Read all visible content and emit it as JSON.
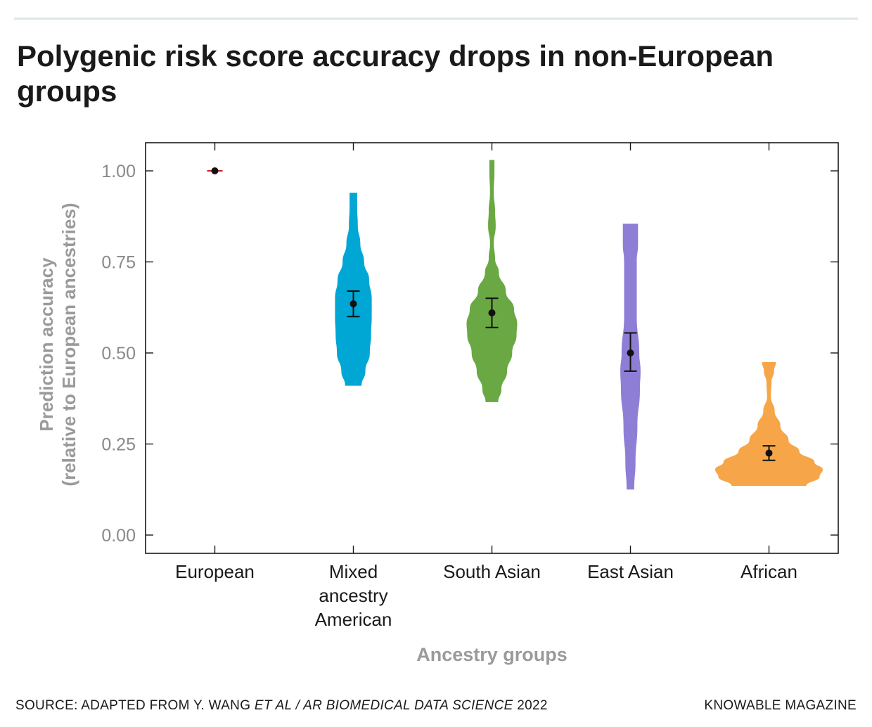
{
  "header": {
    "title": "Polygenic risk score accuracy drops in non-European groups"
  },
  "footer": {
    "source_prefix": "SOURCE: ADAPTED FROM Y. WANG ",
    "source_italic": "ET AL / AR BIOMEDICAL DATA SCIENCE",
    "source_year": " 2022",
    "brand": "KNOWABLE MAGAZINE"
  },
  "chart_data": {
    "type": "violin",
    "title": "Polygenic risk score accuracy drops in non-European groups",
    "xlabel": "Ancestry groups",
    "ylabel": [
      "Prediction accuracy",
      "(relative to European ancestries)"
    ],
    "ylim": [
      0,
      1.075
    ],
    "yticks": [
      0.0,
      0.25,
      0.5,
      0.75,
      1.0
    ],
    "ytick_labels": [
      "0.00",
      "0.25",
      "0.50",
      "0.75",
      "1.00"
    ],
    "grid": false,
    "categories": [
      {
        "name": "European",
        "label_lines": [
          "European"
        ],
        "color": "#d7192a",
        "mean": 1.0,
        "err_low": 1.0,
        "err_high": 1.0,
        "min": 1.0,
        "max": 1.0,
        "profile": []
      },
      {
        "name": "Mixed ancestry American",
        "label_lines": [
          "Mixed",
          "ancestry",
          "American"
        ],
        "color": "#00a6d4",
        "mean": 0.635,
        "err_low": 0.6,
        "err_high": 0.67,
        "min": 0.41,
        "max": 0.94,
        "profile": [
          [
            0.41,
            0.13
          ],
          [
            0.45,
            0.19
          ],
          [
            0.5,
            0.26
          ],
          [
            0.55,
            0.28
          ],
          [
            0.6,
            0.29
          ],
          [
            0.65,
            0.29
          ],
          [
            0.7,
            0.25
          ],
          [
            0.75,
            0.17
          ],
          [
            0.8,
            0.11
          ],
          [
            0.85,
            0.07
          ],
          [
            0.9,
            0.06
          ],
          [
            0.94,
            0.06
          ]
        ]
      },
      {
        "name": "South Asian",
        "label_lines": [
          "South Asian"
        ],
        "color": "#6aa843",
        "mean": 0.61,
        "err_low": 0.57,
        "err_high": 0.65,
        "min": 0.365,
        "max": 1.03,
        "profile": [
          [
            0.365,
            0.1
          ],
          [
            0.4,
            0.15
          ],
          [
            0.45,
            0.24
          ],
          [
            0.5,
            0.32
          ],
          [
            0.55,
            0.39
          ],
          [
            0.58,
            0.4
          ],
          [
            0.62,
            0.35
          ],
          [
            0.67,
            0.22
          ],
          [
            0.72,
            0.11
          ],
          [
            0.76,
            0.05
          ],
          [
            0.8,
            0.03
          ],
          [
            0.85,
            0.06
          ],
          [
            0.89,
            0.05
          ],
          [
            0.94,
            0.03
          ],
          [
            1.0,
            0.04
          ],
          [
            1.03,
            0.04
          ]
        ]
      },
      {
        "name": "East Asian",
        "label_lines": [
          "East Asian"
        ],
        "color": "#8f7ed6",
        "mean": 0.5,
        "err_low": 0.45,
        "err_high": 0.555,
        "min": 0.125,
        "max": 0.855,
        "profile": [
          [
            0.125,
            0.06
          ],
          [
            0.2,
            0.08
          ],
          [
            0.3,
            0.11
          ],
          [
            0.4,
            0.15
          ],
          [
            0.45,
            0.16
          ],
          [
            0.5,
            0.14
          ],
          [
            0.6,
            0.1
          ],
          [
            0.7,
            0.1
          ],
          [
            0.75,
            0.1
          ],
          [
            0.8,
            0.12
          ],
          [
            0.855,
            0.12
          ]
        ]
      },
      {
        "name": "African",
        "label_lines": [
          "African"
        ],
        "color": "#f6a648",
        "mean": 0.225,
        "err_low": 0.205,
        "err_high": 0.245,
        "min": 0.135,
        "max": 0.475,
        "profile": [
          [
            0.135,
            0.59
          ],
          [
            0.16,
            0.8
          ],
          [
            0.18,
            0.85
          ],
          [
            0.2,
            0.72
          ],
          [
            0.23,
            0.48
          ],
          [
            0.26,
            0.31
          ],
          [
            0.3,
            0.18
          ],
          [
            0.34,
            0.09
          ],
          [
            0.38,
            0.03
          ],
          [
            0.42,
            0.04
          ],
          [
            0.45,
            0.08
          ],
          [
            0.475,
            0.11
          ]
        ]
      }
    ]
  }
}
